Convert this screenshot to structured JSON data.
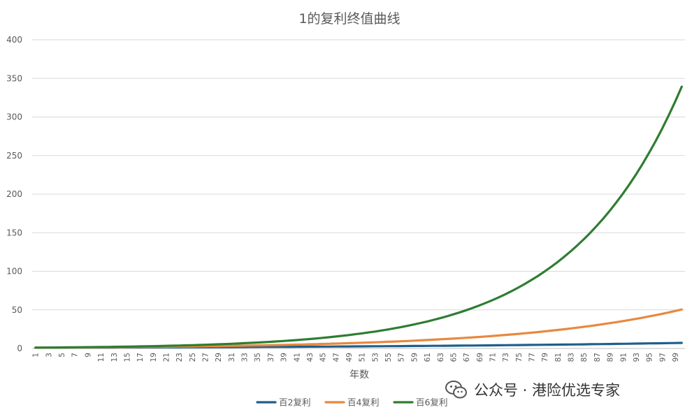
{
  "chart_data": {
    "type": "line",
    "title": "1的复利终值曲线",
    "xlabel": "年数",
    "ylabel": "",
    "ylim": [
      0,
      400
    ],
    "yticks": [
      0,
      50,
      100,
      150,
      200,
      250,
      300,
      350,
      400
    ],
    "xrange": [
      1,
      100
    ],
    "xtick_labels": [
      "1",
      "3",
      "5",
      "7",
      "9",
      "11",
      "13",
      "15",
      "17",
      "19",
      "21",
      "23",
      "25",
      "27",
      "29",
      "31",
      "33",
      "35",
      "37",
      "39",
      "41",
      "43",
      "45",
      "47",
      "49",
      "51",
      "53",
      "55",
      "57",
      "59",
      "61",
      "63",
      "65",
      "67",
      "69",
      "71",
      "73",
      "75",
      "77",
      "79",
      "81",
      "83",
      "85",
      "87",
      "89",
      "91",
      "93",
      "95",
      "97",
      "99"
    ],
    "grid": true,
    "legend": "bottom",
    "series": [
      {
        "name": "百2复利",
        "color": "#1f5f8b",
        "rate": 0.02,
        "x": [
          1,
          10,
          20,
          30,
          40,
          50,
          60,
          70,
          80,
          90,
          100
        ],
        "values": [
          1.02,
          1.22,
          1.49,
          1.81,
          2.21,
          2.69,
          3.28,
          4.0,
          4.88,
          5.94,
          7.24
        ]
      },
      {
        "name": "百4复利",
        "color": "#e8883f",
        "rate": 0.04,
        "x": [
          1,
          10,
          20,
          30,
          40,
          50,
          60,
          70,
          80,
          90,
          100
        ],
        "values": [
          1.04,
          1.48,
          2.19,
          3.24,
          4.8,
          7.11,
          10.52,
          15.57,
          23.05,
          34.12,
          50.5
        ]
      },
      {
        "name": "百6复利",
        "color": "#2e7d32",
        "rate": 0.06,
        "x": [
          1,
          10,
          20,
          30,
          40,
          50,
          60,
          70,
          80,
          90,
          100
        ],
        "values": [
          1.06,
          1.79,
          3.21,
          5.74,
          10.29,
          18.42,
          32.99,
          59.08,
          105.8,
          189.46,
          339.3
        ]
      }
    ]
  },
  "watermark": {
    "text": "公众号 · 港险优选专家",
    "icon": "wechat-icon"
  }
}
